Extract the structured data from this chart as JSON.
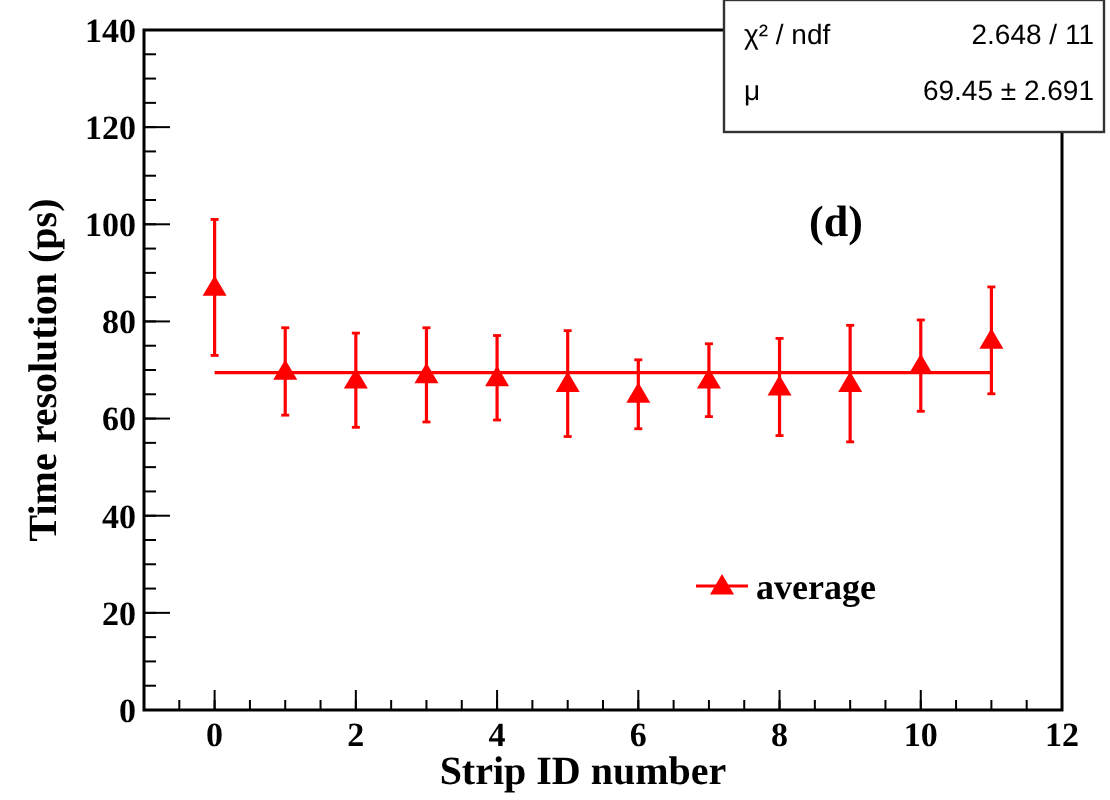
{
  "chart_data": {
    "type": "scatter",
    "xlabel": "Strip ID number",
    "ylabel": "Time resolution (ps)",
    "annotations": [
      "(d)",
      "χ² / ndf",
      "2.648 / 11",
      "μ",
      "69.45 ± 2.691"
    ],
    "xlim": [
      -1,
      12
    ],
    "xticks": [
      0,
      2,
      4,
      6,
      8,
      10,
      12
    ],
    "ylim": [
      0,
      140
    ],
    "yticks": [
      0,
      20,
      40,
      60,
      80,
      100,
      120,
      140
    ],
    "grid": false,
    "legend": "bottom right",
    "marker": "triangle",
    "series": [
      {
        "name": "average",
        "color": "#ff0000",
        "x": [
          0,
          1,
          2,
          3,
          4,
          5,
          6,
          7,
          8,
          9,
          10,
          11
        ],
        "values": [
          87,
          69.7,
          67.9,
          69,
          68.4,
          67.2,
          65,
          67.9,
          66.5,
          67.2,
          70.9,
          76.1
        ],
        "errors": [
          14,
          9,
          9.7,
          9.7,
          8.7,
          10.9,
          7.1,
          7.5,
          10,
          12,
          9.4,
          11
        ]
      },
      {
        "type": "line",
        "color": "#ff0000",
        "marker": "none",
        "x": [
          0,
          11
        ],
        "values": [
          69.45,
          69.45
        ]
      }
    ]
  }
}
